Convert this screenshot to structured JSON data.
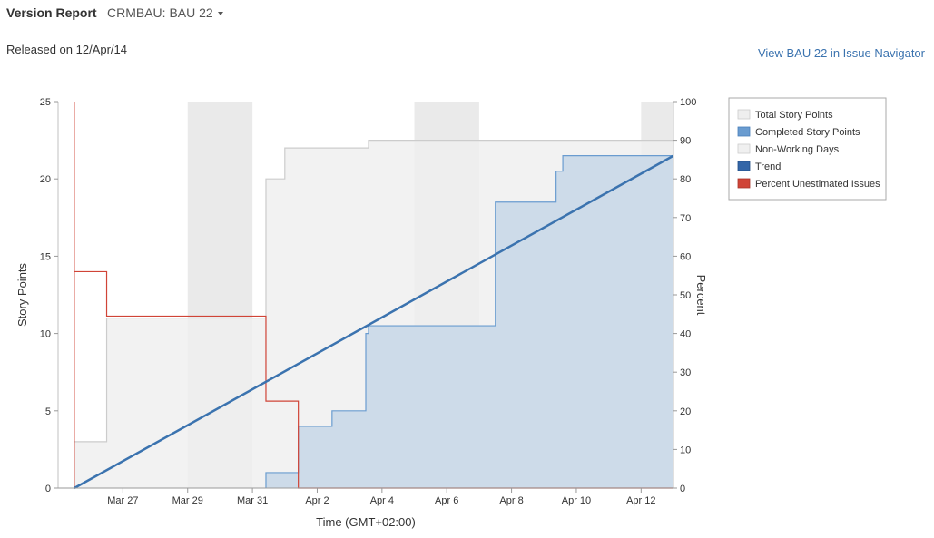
{
  "header": {
    "title": "Version Report",
    "project": "CRMBAU: BAU 22",
    "released": "Released on 12/Apr/14",
    "navigator_link": "View BAU 22 in Issue Navigator"
  },
  "chart_data": {
    "type": "area",
    "xlabel": "Time (GMT+02:00)",
    "ylabel": "Story Points",
    "y2label": "Percent",
    "x_range": [
      "2014-03-25",
      "2014-04-13"
    ],
    "ylim": [
      0,
      25
    ],
    "y2lim": [
      0,
      100
    ],
    "x_ticks": [
      {
        "date": "2014-03-27",
        "label": "Mar 27"
      },
      {
        "date": "2014-03-29",
        "label": "Mar 29"
      },
      {
        "date": "2014-03-31",
        "label": "Mar 31"
      },
      {
        "date": "2014-04-02",
        "label": "Apr 2"
      },
      {
        "date": "2014-04-04",
        "label": "Apr 4"
      },
      {
        "date": "2014-04-06",
        "label": "Apr 6"
      },
      {
        "date": "2014-04-08",
        "label": "Apr 8"
      },
      {
        "date": "2014-04-10",
        "label": "Apr 10"
      },
      {
        "date": "2014-04-12",
        "label": "Apr 12"
      }
    ],
    "y_ticks": [
      0,
      5,
      10,
      15,
      20,
      25
    ],
    "y2_ticks": [
      0,
      10,
      20,
      30,
      40,
      50,
      60,
      70,
      80,
      90,
      100
    ],
    "legend": {
      "placement": "right",
      "items": [
        {
          "label": "Total Story Points",
          "color": "#eeeeee"
        },
        {
          "label": "Completed Story Points",
          "color": "#6a9cd0"
        },
        {
          "label": "Non-Working Days",
          "color": "#f0f0f0"
        },
        {
          "label": "Trend",
          "color": "#3366a8"
        },
        {
          "label": "Percent Unestimated Issues",
          "color": "#d04437"
        }
      ]
    },
    "non_working_days": [
      [
        "2014-03-29",
        "2014-03-31"
      ],
      [
        "2014-04-05",
        "2014-04-07"
      ],
      [
        "2014-04-12",
        "2014-04-13"
      ]
    ],
    "series": [
      {
        "name": "Total Story Points",
        "axis": "left",
        "points": [
          [
            "2014-03-25 12:00",
            3
          ],
          [
            "2014-03-26 12:00",
            3
          ],
          [
            "2014-03-26 12:00",
            11
          ],
          [
            "2014-03-31 10:00",
            11
          ],
          [
            "2014-03-31 10:00",
            20
          ],
          [
            "2014-04-01 00:00",
            20
          ],
          [
            "2014-04-01 00:00",
            22
          ],
          [
            "2014-04-02 12:00",
            22
          ],
          [
            "2014-04-02 12:00",
            22
          ],
          [
            "2014-04-03 14:00",
            22
          ],
          [
            "2014-04-03 14:00",
            22.5
          ],
          [
            "2014-04-13 00:00",
            22.5
          ]
        ]
      },
      {
        "name": "Completed Story Points",
        "axis": "left",
        "points": [
          [
            "2014-03-31 10:00",
            0
          ],
          [
            "2014-03-31 10:00",
            1
          ],
          [
            "2014-04-01 10:00",
            1
          ],
          [
            "2014-04-01 10:00",
            4
          ],
          [
            "2014-04-02 11:00",
            4
          ],
          [
            "2014-04-02 11:00",
            5
          ],
          [
            "2014-04-03 12:00",
            5
          ],
          [
            "2014-04-03 12:00",
            10
          ],
          [
            "2014-04-03 14:00",
            10
          ],
          [
            "2014-04-03 14:00",
            10.5
          ],
          [
            "2014-04-07 12:00",
            10.5
          ],
          [
            "2014-04-07 12:00",
            18.5
          ],
          [
            "2014-04-09 09:00",
            18.5
          ],
          [
            "2014-04-09 09:00",
            20.5
          ],
          [
            "2014-04-09 14:00",
            20.5
          ],
          [
            "2014-04-09 14:00",
            21.5
          ],
          [
            "2014-04-13 00:00",
            21.5
          ]
        ]
      },
      {
        "name": "Trend",
        "axis": "left",
        "points": [
          [
            "2014-03-25 12:00",
            0
          ],
          [
            "2014-04-13 00:00",
            21.5
          ]
        ]
      },
      {
        "name": "Percent Unestimated Issues",
        "axis": "right",
        "points": [
          [
            "2014-03-25 12:00",
            0
          ],
          [
            "2014-03-25 12:00",
            100
          ],
          [
            "2014-03-25 12:00",
            67
          ],
          [
            "2014-03-25 12:00",
            56
          ],
          [
            "2014-03-26 12:00",
            56
          ],
          [
            "2014-03-26 12:00",
            44.5
          ],
          [
            "2014-03-31 10:00",
            44.5
          ],
          [
            "2014-03-31 10:00",
            22.5
          ],
          [
            "2014-04-01 10:00",
            22.5
          ],
          [
            "2014-04-01 10:00",
            0
          ],
          [
            "2014-04-13 00:00",
            0
          ]
        ]
      }
    ]
  }
}
